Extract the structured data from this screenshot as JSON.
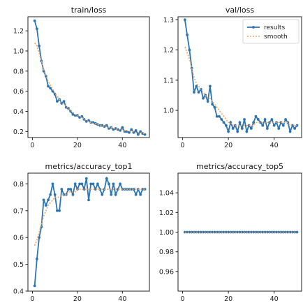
{
  "colors": {
    "results": "#2b75b5",
    "smooth": "#f2a35e"
  },
  "chart_data": [
    {
      "type": "line",
      "title": "train/loss",
      "xlim": [
        -2,
        52
      ],
      "ylim": [
        0.14,
        1.34
      ],
      "xticks": [
        0,
        20,
        40
      ],
      "yticks": [
        0.2,
        0.4,
        0.6,
        0.8,
        1.0,
        1.2
      ],
      "ytick_labels": [
        "0.2",
        "0.4",
        "0.6",
        "0.8",
        "1.0",
        "1.2"
      ],
      "series": [
        {
          "name": "results",
          "x": [
            1,
            2,
            3,
            4,
            5,
            6,
            7,
            8,
            9,
            10,
            11,
            12,
            13,
            14,
            15,
            16,
            17,
            18,
            19,
            20,
            21,
            22,
            23,
            24,
            25,
            26,
            27,
            28,
            29,
            30,
            31,
            32,
            33,
            34,
            35,
            36,
            37,
            38,
            39,
            40,
            41,
            42,
            43,
            44,
            45,
            46,
            47,
            48,
            49,
            50
          ],
          "values": [
            1.3,
            1.22,
            1.05,
            0.9,
            0.8,
            0.75,
            0.65,
            0.63,
            0.6,
            0.57,
            0.5,
            0.52,
            0.48,
            0.5,
            0.44,
            0.43,
            0.4,
            0.37,
            0.36,
            0.36,
            0.34,
            0.35,
            0.32,
            0.3,
            0.31,
            0.29,
            0.29,
            0.28,
            0.27,
            0.26,
            0.26,
            0.25,
            0.26,
            0.23,
            0.24,
            0.22,
            0.23,
            0.22,
            0.21,
            0.24,
            0.2,
            0.2,
            0.19,
            0.22,
            0.19,
            0.21,
            0.17,
            0.2,
            0.18,
            0.17
          ]
        },
        {
          "name": "smooth",
          "x": [
            1,
            2,
            3,
            4,
            5,
            6,
            7,
            8,
            9,
            10,
            11,
            12,
            13,
            14,
            15,
            16,
            17,
            18,
            19,
            20,
            21,
            22,
            23,
            24,
            25,
            26,
            27,
            28,
            29,
            30,
            31,
            32,
            33,
            34,
            35,
            36,
            37,
            38,
            39,
            40,
            41,
            42,
            43,
            44,
            45,
            46,
            47,
            48,
            49,
            50
          ],
          "values": [
            1.08,
            1.05,
            0.98,
            0.9,
            0.82,
            0.76,
            0.7,
            0.66,
            0.62,
            0.58,
            0.55,
            0.52,
            0.49,
            0.47,
            0.45,
            0.43,
            0.41,
            0.39,
            0.37,
            0.36,
            0.35,
            0.34,
            0.32,
            0.31,
            0.3,
            0.29,
            0.28,
            0.28,
            0.27,
            0.26,
            0.26,
            0.25,
            0.25,
            0.24,
            0.24,
            0.23,
            0.23,
            0.22,
            0.22,
            0.22,
            0.21,
            0.21,
            0.2,
            0.2,
            0.2,
            0.19,
            0.19,
            0.19,
            0.18,
            0.18
          ]
        }
      ]
    },
    {
      "type": "line",
      "title": "val/loss",
      "xlim": [
        -2,
        52
      ],
      "ylim": [
        0.91,
        1.31
      ],
      "xticks": [
        0,
        20,
        40
      ],
      "yticks": [
        1.0,
        1.1,
        1.2,
        1.3
      ],
      "ytick_labels": [
        "1.0",
        "1.1",
        "1.2",
        "1.3"
      ],
      "legend": {
        "position": "top-right",
        "entries": [
          "results",
          "smooth"
        ]
      },
      "series": [
        {
          "name": "results",
          "x": [
            1,
            2,
            3,
            4,
            5,
            6,
            7,
            8,
            9,
            10,
            11,
            12,
            13,
            14,
            15,
            16,
            17,
            18,
            19,
            20,
            21,
            22,
            23,
            24,
            25,
            26,
            27,
            28,
            29,
            30,
            31,
            32,
            33,
            34,
            35,
            36,
            37,
            38,
            39,
            40,
            41,
            42,
            43,
            44,
            45,
            46,
            47,
            48,
            49,
            50
          ],
          "values": [
            1.3,
            1.25,
            1.2,
            1.14,
            1.06,
            1.08,
            1.06,
            1.07,
            1.04,
            1.05,
            1.03,
            1.08,
            1.02,
            1.01,
            0.98,
            0.98,
            0.97,
            0.96,
            0.95,
            0.93,
            0.96,
            0.94,
            0.95,
            0.93,
            0.96,
            0.94,
            0.97,
            0.93,
            0.95,
            0.94,
            0.96,
            0.98,
            0.97,
            0.96,
            0.95,
            0.97,
            0.94,
            0.96,
            0.97,
            0.95,
            0.96,
            0.94,
            0.96,
            0.95,
            0.97,
            0.96,
            0.93,
            0.95,
            0.94,
            0.95
          ]
        },
        {
          "name": "smooth",
          "x": [
            1,
            2,
            3,
            4,
            5,
            6,
            7,
            8,
            9,
            10,
            11,
            12,
            13,
            14,
            15,
            16,
            17,
            18,
            19,
            20,
            21,
            22,
            23,
            24,
            25,
            26,
            27,
            28,
            29,
            30,
            31,
            32,
            33,
            34,
            35,
            36,
            37,
            38,
            39,
            40,
            41,
            42,
            43,
            44,
            45,
            46,
            47,
            48,
            49,
            50
          ],
          "values": [
            1.21,
            1.19,
            1.17,
            1.14,
            1.11,
            1.09,
            1.08,
            1.07,
            1.06,
            1.05,
            1.04,
            1.04,
            1.03,
            1.02,
            1.01,
            1.0,
            0.99,
            0.98,
            0.97,
            0.96,
            0.96,
            0.95,
            0.95,
            0.95,
            0.95,
            0.95,
            0.95,
            0.95,
            0.95,
            0.95,
            0.95,
            0.96,
            0.96,
            0.96,
            0.96,
            0.96,
            0.96,
            0.96,
            0.96,
            0.96,
            0.96,
            0.96,
            0.96,
            0.96,
            0.96,
            0.96,
            0.95,
            0.95,
            0.95,
            0.95
          ]
        }
      ]
    },
    {
      "type": "line",
      "title": "metrics/accuracy_top1",
      "xlim": [
        -2,
        52
      ],
      "ylim": [
        0.4,
        0.84
      ],
      "xticks": [
        0,
        20,
        40
      ],
      "yticks": [
        0.4,
        0.5,
        0.6,
        0.7,
        0.8
      ],
      "ytick_labels": [
        "0.4",
        "0.5",
        "0.6",
        "0.7",
        "0.8"
      ],
      "series": [
        {
          "name": "results",
          "x": [
            1,
            2,
            3,
            4,
            5,
            6,
            7,
            8,
            9,
            10,
            11,
            12,
            13,
            14,
            15,
            16,
            17,
            18,
            19,
            20,
            21,
            22,
            23,
            24,
            25,
            26,
            27,
            28,
            29,
            30,
            31,
            32,
            33,
            34,
            35,
            36,
            37,
            38,
            39,
            40,
            41,
            42,
            43,
            44,
            45,
            46,
            47,
            48,
            49,
            50
          ],
          "values": [
            0.42,
            0.52,
            0.6,
            0.64,
            0.74,
            0.72,
            0.74,
            0.76,
            0.8,
            0.76,
            0.7,
            0.7,
            0.78,
            0.76,
            0.76,
            0.78,
            0.78,
            0.76,
            0.8,
            0.78,
            0.8,
            0.8,
            0.78,
            0.82,
            0.74,
            0.8,
            0.8,
            0.78,
            0.8,
            0.78,
            0.76,
            0.78,
            0.82,
            0.8,
            0.76,
            0.8,
            0.76,
            0.78,
            0.8,
            0.78,
            0.78,
            0.78,
            0.78,
            0.78,
            0.78,
            0.76,
            0.78,
            0.76,
            0.78,
            0.78
          ]
        },
        {
          "name": "smooth",
          "x": [
            1,
            2,
            3,
            4,
            5,
            6,
            7,
            8,
            9,
            10,
            11,
            12,
            13,
            14,
            15,
            16,
            17,
            18,
            19,
            20,
            21,
            22,
            23,
            24,
            25,
            26,
            27,
            28,
            29,
            30,
            31,
            32,
            33,
            34,
            35,
            36,
            37,
            38,
            39,
            40,
            41,
            42,
            43,
            44,
            45,
            46,
            47,
            48,
            49,
            50
          ],
          "values": [
            0.57,
            0.59,
            0.62,
            0.65,
            0.68,
            0.7,
            0.72,
            0.73,
            0.74,
            0.75,
            0.75,
            0.75,
            0.76,
            0.76,
            0.76,
            0.77,
            0.77,
            0.77,
            0.77,
            0.78,
            0.78,
            0.78,
            0.78,
            0.78,
            0.78,
            0.78,
            0.78,
            0.78,
            0.78,
            0.78,
            0.78,
            0.78,
            0.78,
            0.78,
            0.78,
            0.78,
            0.78,
            0.78,
            0.78,
            0.78,
            0.78,
            0.78,
            0.78,
            0.78,
            0.78,
            0.78,
            0.78,
            0.78,
            0.78,
            0.78
          ]
        }
      ]
    },
    {
      "type": "line",
      "title": "metrics/accuracy_top5",
      "xlim": [
        -2,
        52
      ],
      "ylim": [
        0.94,
        1.06
      ],
      "xticks": [
        0,
        20,
        40
      ],
      "yticks": [
        0.96,
        0.98,
        1.0,
        1.02,
        1.04
      ],
      "ytick_labels": [
        "0.96",
        "0.98",
        "1.00",
        "1.02",
        "1.04"
      ],
      "series": [
        {
          "name": "results",
          "x": [
            1,
            2,
            3,
            4,
            5,
            6,
            7,
            8,
            9,
            10,
            11,
            12,
            13,
            14,
            15,
            16,
            17,
            18,
            19,
            20,
            21,
            22,
            23,
            24,
            25,
            26,
            27,
            28,
            29,
            30,
            31,
            32,
            33,
            34,
            35,
            36,
            37,
            38,
            39,
            40,
            41,
            42,
            43,
            44,
            45,
            46,
            47,
            48,
            49,
            50
          ],
          "values": [
            1.0,
            1.0,
            1.0,
            1.0,
            1.0,
            1.0,
            1.0,
            1.0,
            1.0,
            1.0,
            1.0,
            1.0,
            1.0,
            1.0,
            1.0,
            1.0,
            1.0,
            1.0,
            1.0,
            1.0,
            1.0,
            1.0,
            1.0,
            1.0,
            1.0,
            1.0,
            1.0,
            1.0,
            1.0,
            1.0,
            1.0,
            1.0,
            1.0,
            1.0,
            1.0,
            1.0,
            1.0,
            1.0,
            1.0,
            1.0,
            1.0,
            1.0,
            1.0,
            1.0,
            1.0,
            1.0,
            1.0,
            1.0,
            1.0,
            1.0
          ]
        },
        {
          "name": "smooth",
          "x": [
            1,
            2,
            3,
            4,
            5,
            6,
            7,
            8,
            9,
            10,
            11,
            12,
            13,
            14,
            15,
            16,
            17,
            18,
            19,
            20,
            21,
            22,
            23,
            24,
            25,
            26,
            27,
            28,
            29,
            30,
            31,
            32,
            33,
            34,
            35,
            36,
            37,
            38,
            39,
            40,
            41,
            42,
            43,
            44,
            45,
            46,
            47,
            48,
            49,
            50
          ],
          "values": [
            1.0,
            1.0,
            1.0,
            1.0,
            1.0,
            1.0,
            1.0,
            1.0,
            1.0,
            1.0,
            1.0,
            1.0,
            1.0,
            1.0,
            1.0,
            1.0,
            1.0,
            1.0,
            1.0,
            1.0,
            1.0,
            1.0,
            1.0,
            1.0,
            1.0,
            1.0,
            1.0,
            1.0,
            1.0,
            1.0,
            1.0,
            1.0,
            1.0,
            1.0,
            1.0,
            1.0,
            1.0,
            1.0,
            1.0,
            1.0,
            1.0,
            1.0,
            1.0,
            1.0,
            1.0,
            1.0,
            1.0,
            1.0,
            1.0,
            1.0
          ]
        }
      ]
    }
  ]
}
